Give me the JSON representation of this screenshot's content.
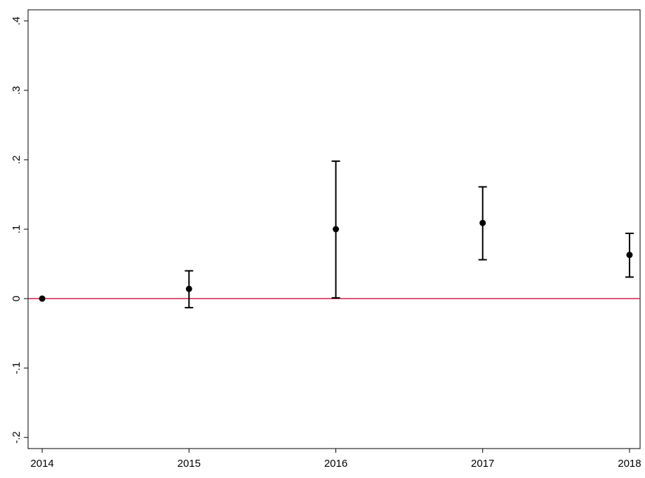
{
  "chart_data": {
    "type": "scatter",
    "x": [
      2014,
      2015,
      2016,
      2017,
      2018
    ],
    "values": [
      0,
      0.014,
      0.1,
      0.109,
      0.063
    ],
    "lower": [
      null,
      -0.013,
      0.001,
      0.056,
      0.031
    ],
    "upper": [
      null,
      0.04,
      0.198,
      0.161,
      0.094
    ],
    "color": "#000000",
    "xlim": [
      2013.904,
      2018.072
    ],
    "xticks": [
      2014,
      2015,
      2016,
      2017,
      2018
    ],
    "ylim": [
      -0.216,
      0.416
    ],
    "yticks": [
      {
        "value": -0.2,
        "label": "-.2"
      },
      {
        "value": -0.1,
        "label": "-.1"
      },
      0,
      {
        "value": 0.1,
        "label": ".1"
      },
      {
        "value": 0.2,
        "label": ".2"
      },
      {
        "value": 0.3,
        "label": ".3"
      },
      {
        "value": 0.4,
        "label": ".4"
      }
    ],
    "hline": {
      "y": 0,
      "color": "#d11f4d"
    },
    "grid": false
  }
}
